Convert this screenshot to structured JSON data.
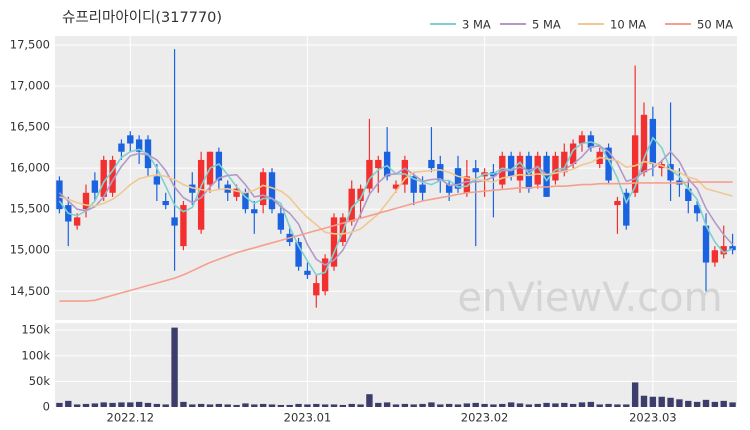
{
  "chart_data": [
    {
      "type": "candlestick",
      "title": "슈프리마아이디(317770)",
      "watermark": "enViewV.com",
      "up_color": "#f2302f",
      "down_color": "#1a62e0",
      "open": [
        15850,
        15550,
        15300,
        15500,
        15850,
        15650,
        15700,
        16300,
        16400,
        16350,
        16350,
        15900,
        15600,
        15400,
        15050,
        15800,
        15250,
        15800,
        16200,
        15800,
        15650,
        15700,
        15500,
        15550,
        15950,
        15450,
        15200,
        15100,
        14750,
        14450,
        14500,
        14800,
        15100,
        15350,
        15600,
        15750,
        16000,
        16200,
        15750,
        15800,
        15900,
        15800,
        16100,
        16050,
        15800,
        16000,
        15700,
        16000,
        15900,
        15950,
        15800,
        16150,
        15850,
        16150,
        15800,
        16150,
        15850,
        15950,
        16050,
        16300,
        16400,
        16050,
        16250,
        15550,
        15700,
        15700,
        15950,
        16600,
        16000,
        16050,
        15850,
        15750,
        15550,
        15300,
        14850,
        14950,
        15050
      ],
      "high": [
        15900,
        15650,
        15450,
        15800,
        15950,
        16150,
        16150,
        16350,
        16450,
        16400,
        16400,
        16050,
        15700,
        17450,
        15600,
        15950,
        16200,
        16200,
        16250,
        15850,
        15800,
        15750,
        15600,
        16000,
        16000,
        15550,
        15300,
        15150,
        14850,
        14700,
        14950,
        15450,
        15450,
        15850,
        15800,
        16600,
        16150,
        16500,
        15850,
        16150,
        15950,
        15900,
        16500,
        16150,
        15850,
        16150,
        16100,
        16100,
        16000,
        16050,
        16200,
        16200,
        16200,
        16200,
        16200,
        16200,
        16200,
        16300,
        16350,
        16450,
        16450,
        16250,
        16300,
        15650,
        15750,
        17250,
        16800,
        16750,
        16100,
        16800,
        16000,
        15850,
        15600,
        15450,
        15050,
        15300,
        15200
      ],
      "low": [
        15450,
        15050,
        15250,
        15400,
        15600,
        15600,
        15650,
        16100,
        16200,
        16050,
        15900,
        15600,
        15500,
        14750,
        15000,
        15550,
        15200,
        15700,
        15750,
        15600,
        15600,
        15450,
        15200,
        15450,
        15450,
        15200,
        15050,
        14750,
        14650,
        14300,
        14450,
        14750,
        15050,
        15300,
        15400,
        15700,
        15700,
        15850,
        15700,
        15700,
        15550,
        15600,
        15950,
        15700,
        15600,
        15700,
        15650,
        15050,
        15650,
        15400,
        15750,
        15850,
        15700,
        15700,
        15750,
        15650,
        15800,
        15900,
        16000,
        16200,
        16200,
        16000,
        15800,
        15200,
        15250,
        15650,
        15900,
        15900,
        15900,
        15600,
        15650,
        15450,
        15350,
        14500,
        14800,
        14900,
        14950
      ],
      "close": [
        15500,
        15350,
        15400,
        15700,
        15700,
        16100,
        16100,
        16200,
        16300,
        16200,
        16000,
        15800,
        15550,
        15300,
        15550,
        15700,
        16100,
        16200,
        15850,
        15700,
        15750,
        15500,
        15450,
        15950,
        15500,
        15250,
        15100,
        14800,
        14700,
        14600,
        14900,
        15400,
        15400,
        15750,
        15750,
        16100,
        16100,
        15900,
        15800,
        16100,
        15700,
        15700,
        16000,
        15850,
        15700,
        15750,
        15900,
        15950,
        15950,
        15900,
        16150,
        15900,
        16150,
        15750,
        16150,
        15650,
        16150,
        16200,
        16300,
        16400,
        16250,
        16200,
        15850,
        15600,
        15300,
        16400,
        16650,
        16050,
        16050,
        15850,
        15800,
        15600,
        15450,
        14850,
        15000,
        15050,
        15000
      ],
      "series": [
        {
          "name": "3 MA",
          "color": "#7fd0d0",
          "values": [
            15600,
            15450,
            15420,
            15480,
            15600,
            15830,
            15970,
            16130,
            16200,
            16230,
            16170,
            16000,
            15780,
            15550,
            15470,
            15520,
            15780,
            16000,
            16050,
            15920,
            15770,
            15650,
            15570,
            15630,
            15630,
            15570,
            15280,
            15050,
            14870,
            14700,
            14730,
            14970,
            15230,
            15520,
            15630,
            15870,
            15980,
            16030,
            15930,
            15930,
            15870,
            15830,
            15800,
            15850,
            15850,
            15770,
            15780,
            15870,
            15930,
            15930,
            16000,
            15980,
            16070,
            15930,
            16020,
            15850,
            15980,
            16000,
            16220,
            16300,
            16320,
            16280,
            16100,
            15880,
            15580,
            15770,
            16120,
            16370,
            16250,
            15980,
            15900,
            15750,
            15620,
            15300,
            15100,
            14970,
            15020
          ]
        },
        {
          "name": "5 MA",
          "color": "#b29ac8",
          "values": [
            15700,
            15600,
            15500,
            15480,
            15530,
            15650,
            15850,
            16020,
            16150,
            16180,
            16160,
            16100,
            15970,
            15770,
            15640,
            15580,
            15640,
            15770,
            15880,
            15910,
            15920,
            15800,
            15650,
            15670,
            15630,
            15530,
            15450,
            15320,
            15070,
            14890,
            14820,
            14880,
            15000,
            15210,
            15440,
            15680,
            15820,
            15920,
            15930,
            16000,
            15920,
            15840,
            15860,
            15870,
            15790,
            15800,
            15840,
            15830,
            15850,
            15890,
            15970,
            15970,
            16010,
            15970,
            16020,
            15920,
            15940,
            15980,
            16050,
            16140,
            16260,
            16270,
            16200,
            16060,
            15840,
            15870,
            15960,
            16000,
            16090,
            16200,
            16080,
            15870,
            15750,
            15510,
            15340,
            15190,
            15070
          ]
        },
        {
          "name": "10 MA",
          "color": "#f0c891",
          "values": [
            15650,
            15620,
            15580,
            15550,
            15540,
            15570,
            15620,
            15700,
            15800,
            15870,
            15900,
            15920,
            15900,
            15860,
            15800,
            15760,
            15740,
            15720,
            15740,
            15750,
            15720,
            15700,
            15730,
            15790,
            15760,
            15720,
            15640,
            15510,
            15400,
            15310,
            15220,
            15200,
            15200,
            15220,
            15260,
            15350,
            15440,
            15580,
            15720,
            15870,
            15950,
            15960,
            15970,
            15980,
            15950,
            15900,
            15880,
            15860,
            15850,
            15830,
            15880,
            15900,
            15920,
            15910,
            15930,
            15920,
            15940,
            15960,
            15990,
            16040,
            16070,
            16130,
            16110,
            16090,
            16010,
            16030,
            16080,
            16060,
            16030,
            15980,
            15950,
            15890,
            15860,
            15750,
            15720,
            15690,
            15660
          ]
        },
        {
          "name": "50 MA",
          "color": "#f5a08e",
          "values": [
            14380,
            14380,
            14380,
            14380,
            14390,
            14420,
            14450,
            14480,
            14510,
            14540,
            14570,
            14600,
            14630,
            14660,
            14700,
            14750,
            14800,
            14850,
            14890,
            14930,
            14970,
            15000,
            15030,
            15060,
            15090,
            15120,
            15150,
            15180,
            15210,
            15240,
            15270,
            15300,
            15330,
            15360,
            15390,
            15420,
            15450,
            15480,
            15510,
            15540,
            15570,
            15600,
            15620,
            15640,
            15660,
            15680,
            15700,
            15710,
            15720,
            15730,
            15740,
            15750,
            15760,
            15760,
            15770,
            15770,
            15780,
            15780,
            15790,
            15800,
            15800,
            15810,
            15810,
            15810,
            15810,
            15820,
            15820,
            15820,
            15820,
            15820,
            15820,
            15830,
            15830,
            15830,
            15830,
            15830,
            15830
          ]
        }
      ],
      "xlim": [
        -0.5,
        76.5
      ],
      "ylim": [
        14150,
        17610
      ],
      "yticks": [
        {
          "value": 14500,
          "label": "14,500"
        },
        {
          "value": 15000,
          "label": "15,000"
        },
        {
          "value": 15500,
          "label": "15,500"
        },
        {
          "value": 16000,
          "label": "16,000"
        },
        {
          "value": 16500,
          "label": "16,500"
        },
        {
          "value": 17000,
          "label": "17,000"
        },
        {
          "value": 17500,
          "label": "17,500"
        }
      ],
      "grid": true,
      "legend": "top-right"
    },
    {
      "type": "bar",
      "color": "#3d3d6b",
      "values": [
        8000,
        12000,
        5000,
        6000,
        7000,
        9000,
        8000,
        9000,
        9000,
        10000,
        8000,
        6000,
        5000,
        155000,
        10000,
        5000,
        6000,
        5000,
        6000,
        5000,
        4000,
        7000,
        5000,
        6000,
        5000,
        4000,
        4000,
        6000,
        5000,
        6000,
        5000,
        5000,
        4000,
        6000,
        5000,
        25000,
        8000,
        9000,
        5000,
        6000,
        5000,
        6000,
        9000,
        5000,
        6000,
        5000,
        7000,
        8000,
        6000,
        5000,
        6000,
        9000,
        7000,
        5000,
        6000,
        8000,
        7000,
        8000,
        6000,
        9000,
        10000,
        5000,
        6000,
        5000,
        5000,
        48000,
        22000,
        20000,
        20000,
        18000,
        15000,
        12000,
        10000,
        14000,
        10000,
        12000,
        9000
      ],
      "xlim": [
        -0.5,
        76.5
      ],
      "ylim": [
        0,
        164000
      ],
      "yticks": [
        0,
        {
          "value": 50000,
          "label": "50k"
        },
        {
          "value": 100000,
          "label": "100k"
        },
        {
          "value": 150000,
          "label": "150k"
        }
      ],
      "xticks": [
        {
          "value": 8,
          "label": "2022.12"
        },
        {
          "value": 28,
          "label": "2023.01"
        },
        {
          "value": 48,
          "label": "2023.02"
        },
        {
          "value": 67,
          "label": "2023.03"
        }
      ],
      "grid": true
    }
  ]
}
